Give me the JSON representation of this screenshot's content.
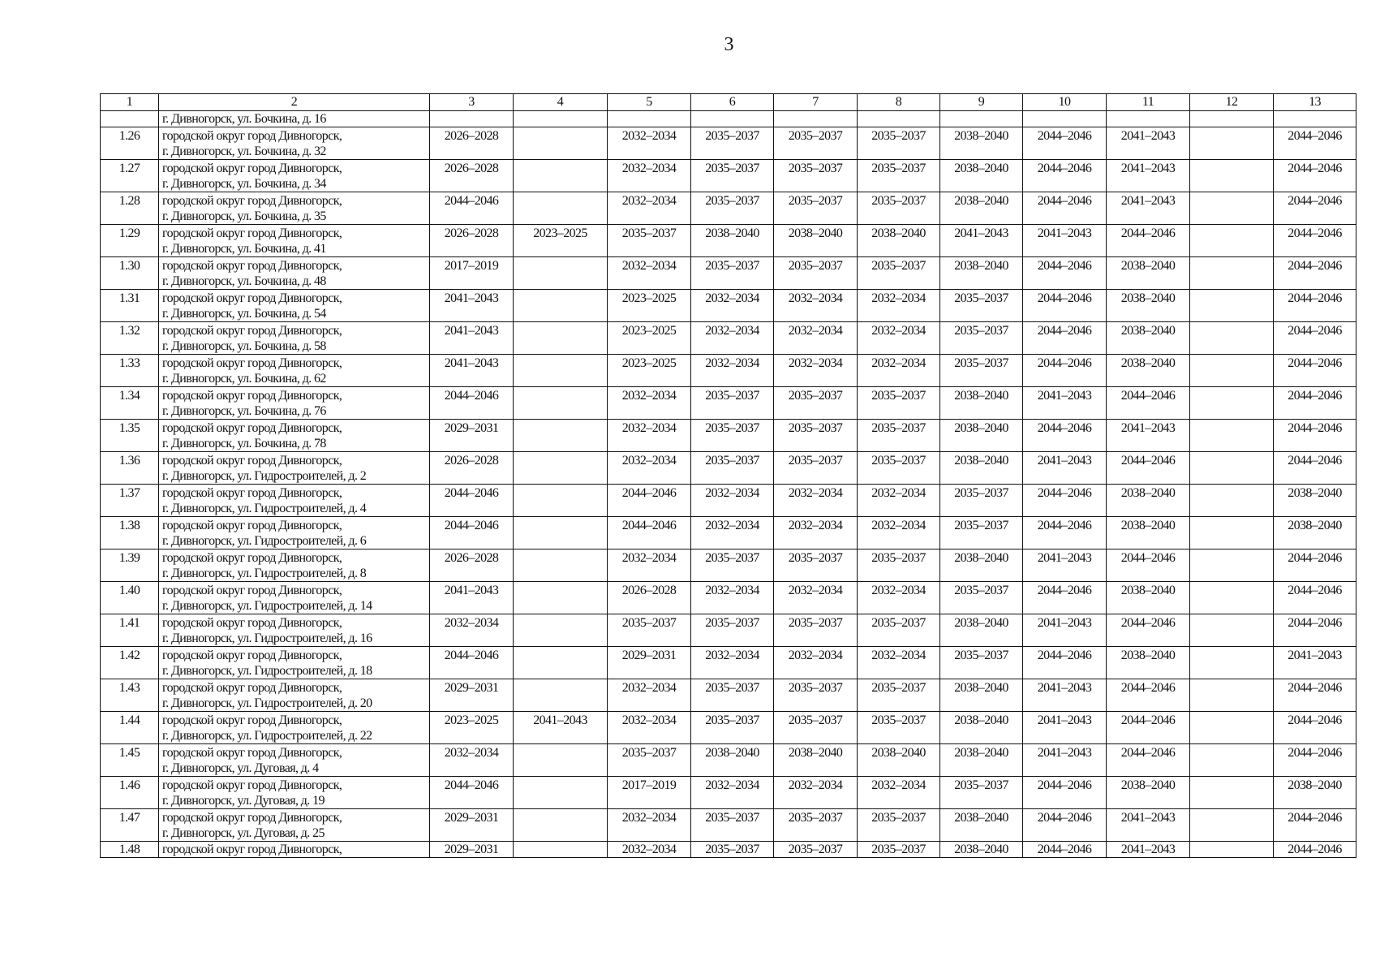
{
  "page_number": "3",
  "table": {
    "headers": [
      "1",
      "2",
      "3",
      "4",
      "5",
      "6",
      "7",
      "8",
      "9",
      "10",
      "11",
      "12",
      "13"
    ],
    "continuation": {
      "address": "г. Дивногорск, ул. Бочкина, д. 16"
    },
    "rows": [
      {
        "num": "1.26",
        "line1": "городской округ город Дивногорск,",
        "line2": "г. Дивногорск, ул. Бочкина, д. 32",
        "cells": [
          "2026–2028",
          "",
          "2032–2034",
          "2035–2037",
          "2035–2037",
          "2035–2037",
          "2038–2040",
          "2044–2046",
          "2041–2043",
          "",
          "2044–2046"
        ]
      },
      {
        "num": "1.27",
        "line1": "городской округ город Дивногорск,",
        "line2": "г. Дивногорск, ул. Бочкина, д. 34",
        "cells": [
          "2026–2028",
          "",
          "2032–2034",
          "2035–2037",
          "2035–2037",
          "2035–2037",
          "2038–2040",
          "2044–2046",
          "2041–2043",
          "",
          "2044–2046"
        ]
      },
      {
        "num": "1.28",
        "line1": "городской округ город Дивногорск,",
        "line2": "г. Дивногорск, ул. Бочкина, д. 35",
        "cells": [
          "2044–2046",
          "",
          "2032–2034",
          "2035–2037",
          "2035–2037",
          "2035–2037",
          "2038–2040",
          "2044–2046",
          "2041–2043",
          "",
          "2044–2046"
        ]
      },
      {
        "num": "1.29",
        "line1": "городской округ город Дивногорск,",
        "line2": "г. Дивногорск, ул. Бочкина, д. 41",
        "cells": [
          "2026–2028",
          "2023–2025",
          "2035–2037",
          "2038–2040",
          "2038–2040",
          "2038–2040",
          "2041–2043",
          "2041–2043",
          "2044–2046",
          "",
          "2044–2046"
        ]
      },
      {
        "num": "1.30",
        "line1": "городской округ город Дивногорск,",
        "line2": "г. Дивногорск, ул. Бочкина, д. 48",
        "cells": [
          "2017–2019",
          "",
          "2032–2034",
          "2035–2037",
          "2035–2037",
          "2035–2037",
          "2038–2040",
          "2044–2046",
          "2038–2040",
          "",
          "2044–2046"
        ]
      },
      {
        "num": "1.31",
        "line1": "городской округ город Дивногорск,",
        "line2": "г. Дивногорск, ул. Бочкина, д. 54",
        "cells": [
          "2041–2043",
          "",
          "2023–2025",
          "2032–2034",
          "2032–2034",
          "2032–2034",
          "2035–2037",
          "2044–2046",
          "2038–2040",
          "",
          "2044–2046"
        ]
      },
      {
        "num": "1.32",
        "line1": "городской округ город Дивногорск,",
        "line2": "г. Дивногорск, ул. Бочкина, д. 58",
        "cells": [
          "2041–2043",
          "",
          "2023–2025",
          "2032–2034",
          "2032–2034",
          "2032–2034",
          "2035–2037",
          "2044–2046",
          "2038–2040",
          "",
          "2044–2046"
        ]
      },
      {
        "num": "1.33",
        "line1": "городской округ город Дивногорск,",
        "line2": "г. Дивногорск, ул. Бочкина, д. 62",
        "cells": [
          "2041–2043",
          "",
          "2023–2025",
          "2032–2034",
          "2032–2034",
          "2032–2034",
          "2035–2037",
          "2044–2046",
          "2038–2040",
          "",
          "2044–2046"
        ]
      },
      {
        "num": "1.34",
        "line1": "городской округ город Дивногорск,",
        "line2": "г. Дивногорск, ул. Бочкина, д. 76",
        "cells": [
          "2044–2046",
          "",
          "2032–2034",
          "2035–2037",
          "2035–2037",
          "2035–2037",
          "2038–2040",
          "2041–2043",
          "2044–2046",
          "",
          "2044–2046"
        ]
      },
      {
        "num": "1.35",
        "line1": "городской округ город Дивногорск,",
        "line2": "г. Дивногорск, ул. Бочкина, д. 78",
        "cells": [
          "2029–2031",
          "",
          "2032–2034",
          "2035–2037",
          "2035–2037",
          "2035–2037",
          "2038–2040",
          "2044–2046",
          "2041–2043",
          "",
          "2044–2046"
        ]
      },
      {
        "num": "1.36",
        "line1": "городской округ город Дивногорск,",
        "line2": "г. Дивногорск, ул. Гидростроителей, д. 2",
        "cells": [
          "2026–2028",
          "",
          "2032–2034",
          "2035–2037",
          "2035–2037",
          "2035–2037",
          "2038–2040",
          "2041–2043",
          "2044–2046",
          "",
          "2044–2046"
        ]
      },
      {
        "num": "1.37",
        "line1": "городской округ город Дивногорск,",
        "line2": "г. Дивногорск, ул. Гидростроителей, д. 4",
        "cells": [
          "2044–2046",
          "",
          "2044–2046",
          "2032–2034",
          "2032–2034",
          "2032–2034",
          "2035–2037",
          "2044–2046",
          "2038–2040",
          "",
          "2038–2040"
        ]
      },
      {
        "num": "1.38",
        "line1": "городской округ город Дивногорск,",
        "line2": "г. Дивногорск, ул. Гидростроителей, д. 6",
        "cells": [
          "2044–2046",
          "",
          "2044–2046",
          "2032–2034",
          "2032–2034",
          "2032–2034",
          "2035–2037",
          "2044–2046",
          "2038–2040",
          "",
          "2038–2040"
        ]
      },
      {
        "num": "1.39",
        "line1": "городской округ город Дивногорск,",
        "line2": "г. Дивногорск, ул. Гидростроителей, д. 8",
        "cells": [
          "2026–2028",
          "",
          "2032–2034",
          "2035–2037",
          "2035–2037",
          "2035–2037",
          "2038–2040",
          "2041–2043",
          "2044–2046",
          "",
          "2044–2046"
        ]
      },
      {
        "num": "1.40",
        "line1": "городской округ город Дивногорск,",
        "line2": "г. Дивногорск, ул. Гидростроителей, д. 14",
        "cells": [
          "2041–2043",
          "",
          "2026–2028",
          "2032–2034",
          "2032–2034",
          "2032–2034",
          "2035–2037",
          "2044–2046",
          "2038–2040",
          "",
          "2044–2046"
        ]
      },
      {
        "num": "1.41",
        "line1": "городской округ город Дивногорск,",
        "line2": "г. Дивногорск, ул. Гидростроителей, д. 16",
        "cells": [
          "2032–2034",
          "",
          "2035–2037",
          "2035–2037",
          "2035–2037",
          "2035–2037",
          "2038–2040",
          "2041–2043",
          "2044–2046",
          "",
          "2044–2046"
        ]
      },
      {
        "num": "1.42",
        "line1": "городской округ город Дивногорск,",
        "line2": "г. Дивногорск, ул. Гидростроителей, д. 18",
        "cells": [
          "2044–2046",
          "",
          "2029–2031",
          "2032–2034",
          "2032–2034",
          "2032–2034",
          "2035–2037",
          "2044–2046",
          "2038–2040",
          "",
          "2041–2043"
        ]
      },
      {
        "num": "1.43",
        "line1": "городской округ город Дивногорск,",
        "line2": "г. Дивногорск, ул. Гидростроителей, д. 20",
        "cells": [
          "2029–2031",
          "",
          "2032–2034",
          "2035–2037",
          "2035–2037",
          "2035–2037",
          "2038–2040",
          "2041–2043",
          "2044–2046",
          "",
          "2044–2046"
        ]
      },
      {
        "num": "1.44",
        "line1": "городской округ город Дивногорск,",
        "line2": "г. Дивногорск, ул. Гидростроителей, д. 22",
        "cells": [
          "2023–2025",
          "2041–2043",
          "2032–2034",
          "2035–2037",
          "2035–2037",
          "2035–2037",
          "2038–2040",
          "2041–2043",
          "2044–2046",
          "",
          "2044–2046"
        ]
      },
      {
        "num": "1.45",
        "line1": "городской округ город Дивногорск,",
        "line2": "г. Дивногорск, ул. Дуговая, д. 4",
        "cells": [
          "2032–2034",
          "",
          "2035–2037",
          "2038–2040",
          "2038–2040",
          "2038–2040",
          "2038–2040",
          "2041–2043",
          "2044–2046",
          "",
          "2044–2046"
        ]
      },
      {
        "num": "1.46",
        "line1": "городской округ город Дивногорск,",
        "line2": "г. Дивногорск, ул. Дуговая, д. 19",
        "cells": [
          "2044–2046",
          "",
          "2017–2019",
          "2032–2034",
          "2032–2034",
          "2032–2034",
          "2035–2037",
          "2044–2046",
          "2038–2040",
          "",
          "2038–2040"
        ]
      },
      {
        "num": "1.47",
        "line1": "городской округ город Дивногорск,",
        "line2": "г. Дивногорск, ул. Дуговая, д. 25",
        "cells": [
          "2029–2031",
          "",
          "2032–2034",
          "2035–2037",
          "2035–2037",
          "2035–2037",
          "2038–2040",
          "2044–2046",
          "2041–2043",
          "",
          "2044–2046"
        ]
      },
      {
        "num": "1.48",
        "line1": "городской округ город Дивногорск,",
        "cells": [
          "2029–2031",
          "",
          "2032–2034",
          "2035–2037",
          "2035–2037",
          "2035–2037",
          "2038–2040",
          "2044–2046",
          "2041–2043",
          "",
          "2044–2046"
        ]
      }
    ]
  }
}
